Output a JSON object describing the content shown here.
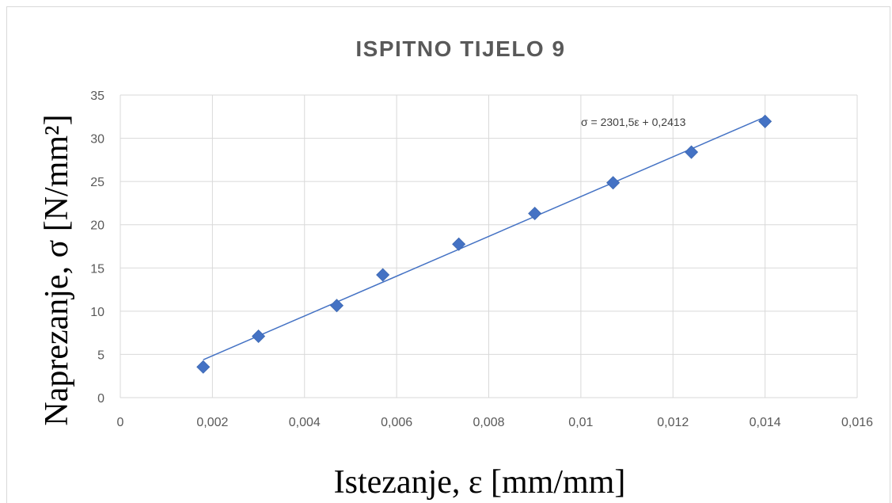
{
  "chart_data": {
    "type": "scatter",
    "title": "ISPITNO TIJELO 9",
    "xlabel": "Istezanje, ε [mm/mm]",
    "ylabel": "Naprezanje, σ [N/mm²]",
    "xlim": [
      0,
      0.016
    ],
    "ylim": [
      0,
      35
    ],
    "x_ticks": [
      0,
      0.002,
      0.004,
      0.006,
      0.008,
      0.01,
      0.012,
      0.014,
      0.016
    ],
    "x_tick_labels": [
      "0",
      "0,002",
      "0,004",
      "0,006",
      "0,008",
      "0,01",
      "0,012",
      "0,014",
      "0,016"
    ],
    "y_ticks": [
      0,
      5,
      10,
      15,
      20,
      25,
      30,
      35
    ],
    "y_tick_labels": [
      "0",
      "5",
      "10",
      "15",
      "20",
      "25",
      "30",
      "35"
    ],
    "grid": true,
    "legend": "none",
    "series": [
      {
        "marker": "diamond",
        "color": "#4472c4",
        "points": [
          {
            "x": 0.0018,
            "y": 3.55
          },
          {
            "x": 0.003,
            "y": 7.1
          },
          {
            "x": 0.0047,
            "y": 10.65
          },
          {
            "x": 0.0057,
            "y": 14.2
          },
          {
            "x": 0.00735,
            "y": 17.75
          },
          {
            "x": 0.009,
            "y": 21.3
          },
          {
            "x": 0.0107,
            "y": 24.85
          },
          {
            "x": 0.0124,
            "y": 28.4
          },
          {
            "x": 0.014,
            "y": 31.95
          }
        ]
      }
    ],
    "trendline": {
      "type": "linear",
      "slope": 2301.5,
      "intercept": 0.2413,
      "x_range": [
        0.0018,
        0.014
      ],
      "color": "#4472c4",
      "equation_label": "σ = 2301,5ε + 0,2413"
    }
  }
}
